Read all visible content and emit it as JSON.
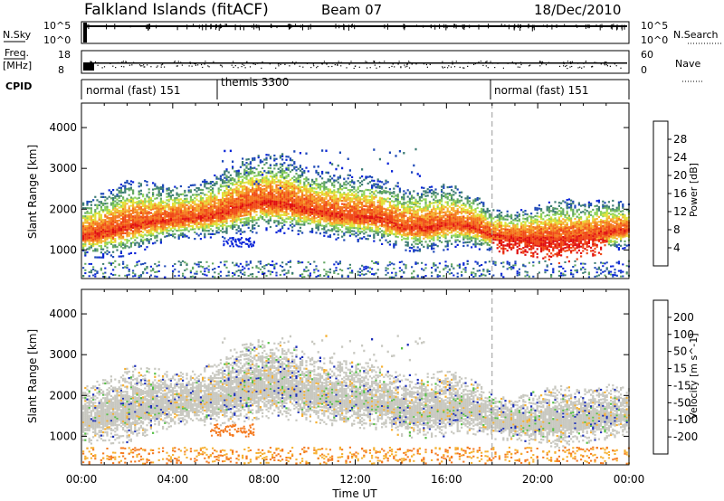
{
  "header": {
    "station": "Falkland Islands (fitACF)",
    "beam": "Beam 07",
    "date": "18/Dec/2010"
  },
  "chart_data": [
    {
      "type": "line",
      "name": "nsky",
      "label": "N.Sky",
      "right_label": "N.Search",
      "y_ticks_left": [
        "10^5",
        "10^0"
      ],
      "y_ticks_right": [
        "10^5",
        "10^0"
      ],
      "note": "noise sky/search traces along top of panel"
    },
    {
      "type": "scatter",
      "name": "freq",
      "label_top": "Freq.",
      "label_unit": "[MHz]",
      "right_label": "Nave",
      "y_ticks_left": [
        "18",
        "8"
      ],
      "y_ticks_right": [
        "60",
        "0"
      ]
    },
    {
      "type": "table",
      "name": "cpid",
      "label": "CPID",
      "segments": [
        {
          "name": "normal (fast) 151",
          "start": 0,
          "end": 6
        },
        {
          "name": "themis 3300",
          "start": 6,
          "end": 18
        },
        {
          "name": "normal (fast) 151",
          "start": 18,
          "end": 24
        }
      ]
    },
    {
      "type": "heatmap",
      "name": "power",
      "ylabel": "Slant Range [km]",
      "y_ticks": [
        1000,
        2000,
        3000,
        4000
      ],
      "ylim": [
        300,
        4600
      ],
      "colorbar_label": "Power [dB]",
      "colorbar_ticks": [
        "28",
        "24",
        "20",
        "16",
        "12",
        "8",
        "4"
      ],
      "colors": [
        "#0a24d8",
        "#1f4ab8",
        "#3e7d74",
        "#64a864",
        "#8fd45a",
        "#e2e238",
        "#f6b030",
        "#f47a20",
        "#f04a18",
        "#e01010"
      ],
      "x_hours": [
        0,
        1,
        2,
        3,
        4,
        5,
        6,
        7,
        8,
        9,
        10,
        11,
        12,
        13,
        14,
        15,
        16,
        17,
        18,
        19,
        20,
        21,
        22,
        23,
        24
      ],
      "band_center_km": [
        1400,
        1500,
        1650,
        1750,
        1800,
        1850,
        1950,
        2150,
        2250,
        2200,
        2050,
        1950,
        1900,
        1850,
        1650,
        1600,
        1700,
        1650,
        1400,
        1350,
        1350,
        1350,
        1400,
        1500,
        1550
      ],
      "band_halfwidth_km": [
        250,
        300,
        350,
        300,
        250,
        250,
        300,
        350,
        350,
        350,
        300,
        300,
        300,
        300,
        280,
        300,
        300,
        250,
        200,
        200,
        250,
        300,
        250,
        250,
        200
      ]
    },
    {
      "type": "heatmap",
      "name": "velocity",
      "ylabel": "Slant Range [km]",
      "y_ticks": [
        1000,
        2000,
        3000,
        4000
      ],
      "ylim": [
        300,
        4600
      ],
      "colorbar_label": "Velocity [m s^-1]",
      "colorbar_ticks": [
        "200",
        "100",
        "50",
        "15",
        "-15",
        "-50",
        "-100",
        "-200"
      ],
      "colors": [
        "#1c2fb8",
        "#24682c",
        "#56c046",
        "#9adc6a",
        "#c8c8c0",
        "#f6b030",
        "#f47a20",
        "#f04a18",
        "#e01010"
      ],
      "xlabel": "Time UT",
      "x_ticks": [
        "00:00",
        "04:00",
        "08:00",
        "12:00",
        "16:00",
        "20:00",
        "00:00"
      ]
    }
  ]
}
